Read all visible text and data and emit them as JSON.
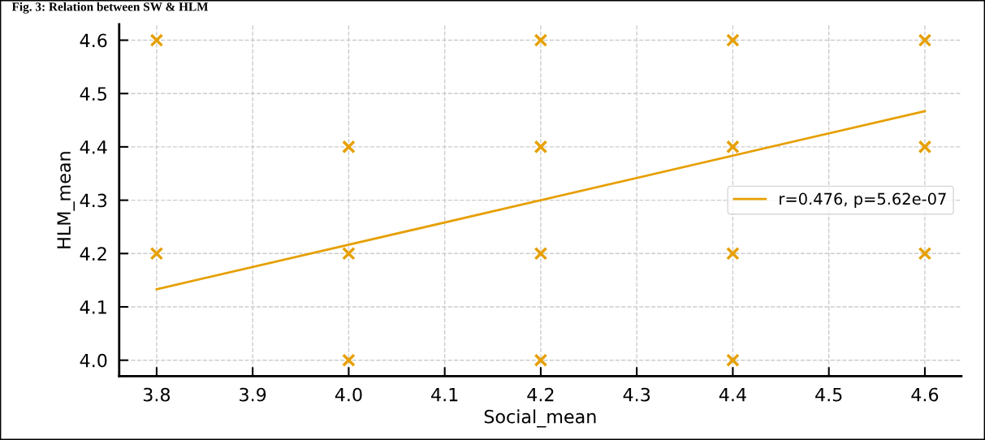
{
  "chart_data": {
    "type": "scatter",
    "title": "Fig. 3: Relation between SW & HLM",
    "xlabel": "Social_mean",
    "ylabel": "HLM_mean",
    "xlim": [
      3.761,
      4.638
    ],
    "ylim": [
      3.97,
      4.63
    ],
    "xticks": [
      3.8,
      3.9,
      {
        "value": 4.0,
        "label": "4.0"
      },
      4.1,
      4.2,
      4.3,
      4.4,
      4.5,
      4.6
    ],
    "yticks": [
      {
        "value": 4.0,
        "label": "4.0"
      },
      4.1,
      4.2,
      4.3,
      4.4,
      4.5,
      4.6
    ],
    "grid": true,
    "legend": "center right",
    "series": [
      {
        "color": "#e69f00",
        "marker": "cross",
        "x": [
          3.8,
          3.8,
          4.0,
          4.0,
          4.0,
          4.2,
          4.2,
          4.2,
          4.2,
          4.4,
          4.4,
          4.4,
          4.4,
          4.6,
          4.6,
          4.6
        ],
        "values": [
          4.6,
          4.2,
          4.4,
          4.2,
          4.0,
          4.6,
          4.4,
          4.2,
          4.0,
          4.6,
          4.4,
          4.2,
          4.0,
          4.6,
          4.4,
          4.2
        ]
      },
      {
        "type": "line",
        "name": "r=0.476, p=5.62e-07",
        "color": "#e69f00",
        "marker": "none",
        "line_style": "solid",
        "x": [
          3.8,
          4.6
        ],
        "values": [
          4.133,
          4.467
        ]
      }
    ]
  }
}
